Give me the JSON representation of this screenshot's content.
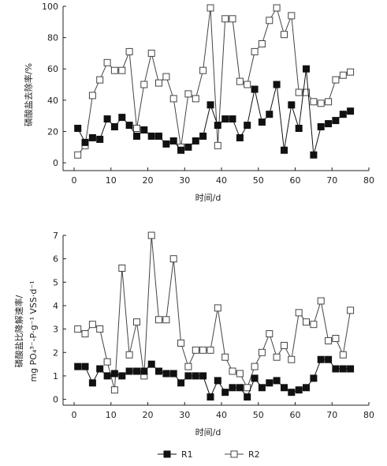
{
  "colors": {
    "r1": "#111111",
    "r2": "#444444",
    "axis": "#222222"
  },
  "legend": {
    "items": [
      {
        "name": "R1",
        "marker": "filled-square"
      },
      {
        "name": "R2",
        "marker": "open-square"
      }
    ]
  },
  "chart_data": [
    {
      "type": "line",
      "title": "",
      "xlabel": "时间/d",
      "ylabel": "磷酸盐去除率/%",
      "xlim": [
        -3,
        80
      ],
      "ylim": [
        -5,
        100
      ],
      "xticks": [
        0,
        10,
        20,
        30,
        40,
        50,
        60,
        70,
        80
      ],
      "yticks": [
        0,
        20,
        40,
        60,
        80,
        100
      ],
      "grid": false,
      "series": [
        {
          "name": "R1",
          "marker": "filled-square",
          "x": [
            1,
            3,
            5,
            7,
            9,
            11,
            13,
            15,
            17,
            19,
            21,
            23,
            25,
            27,
            29,
            31,
            33,
            35,
            37,
            39,
            41,
            43,
            45,
            47,
            49,
            51,
            53,
            55,
            57,
            59,
            61,
            63,
            65,
            67,
            69,
            71,
            73,
            75
          ],
          "values": [
            22,
            13,
            16,
            15,
            28,
            23,
            29,
            24,
            17,
            21,
            17,
            17,
            12,
            14,
            8,
            10,
            14,
            17,
            37,
            24,
            28,
            28,
            16,
            24,
            47,
            26,
            31,
            50,
            8,
            37,
            22,
            60,
            5,
            23,
            25,
            27,
            31,
            33
          ]
        },
        {
          "name": "R2",
          "marker": "open-square",
          "x": [
            1,
            3,
            5,
            7,
            9,
            11,
            13,
            15,
            17,
            19,
            21,
            23,
            25,
            27,
            29,
            31,
            33,
            35,
            37,
            39,
            41,
            43,
            45,
            47,
            49,
            51,
            53,
            55,
            57,
            59,
            61,
            63,
            65,
            67,
            69,
            71,
            73,
            75
          ],
          "values": [
            5,
            11,
            43,
            53,
            64,
            59,
            59,
            71,
            22,
            50,
            70,
            51,
            55,
            41,
            10,
            44,
            41,
            59,
            99,
            11,
            92,
            92,
            52,
            50,
            71,
            76,
            91,
            99,
            82,
            94,
            45,
            45,
            39,
            38,
            39,
            53,
            56,
            58
          ]
        }
      ]
    },
    {
      "type": "line",
      "title": "",
      "xlabel": "时间/d",
      "ylabel_line1": "磷酸盐比降解速率/",
      "ylabel_line2": "mg PO₄³⁻-P·g⁻¹ VSS·d⁻¹",
      "xlim": [
        -3,
        80
      ],
      "ylim": [
        -0.25,
        7
      ],
      "xticks": [
        0,
        10,
        20,
        30,
        40,
        50,
        60,
        70,
        80
      ],
      "yticks": [
        0,
        1,
        2,
        3,
        4,
        5,
        6,
        7
      ],
      "grid": false,
      "series": [
        {
          "name": "R1",
          "marker": "filled-square",
          "x": [
            1,
            3,
            5,
            7,
            9,
            11,
            13,
            15,
            17,
            19,
            21,
            23,
            25,
            27,
            29,
            31,
            33,
            35,
            37,
            39,
            41,
            43,
            45,
            47,
            49,
            51,
            53,
            55,
            57,
            59,
            61,
            63,
            65,
            67,
            69,
            71,
            73,
            75
          ],
          "values": [
            1.4,
            1.4,
            0.7,
            1.3,
            1.0,
            1.1,
            1.0,
            1.2,
            1.2,
            1.2,
            1.5,
            1.2,
            1.1,
            1.1,
            0.7,
            1.0,
            1.0,
            1.0,
            0.1,
            0.8,
            0.3,
            0.5,
            0.5,
            0.1,
            0.9,
            0.5,
            0.7,
            0.8,
            0.5,
            0.3,
            0.4,
            0.5,
            0.9,
            1.7,
            1.7,
            1.3,
            1.3,
            1.3
          ]
        },
        {
          "name": "R2",
          "marker": "open-square",
          "x": [
            1,
            3,
            5,
            7,
            9,
            11,
            13,
            15,
            17,
            19,
            21,
            23,
            25,
            27,
            29,
            31,
            33,
            35,
            37,
            39,
            41,
            43,
            45,
            47,
            49,
            51,
            53,
            55,
            57,
            59,
            61,
            63,
            65,
            67,
            69,
            71,
            73,
            75
          ],
          "values": [
            3.0,
            2.8,
            3.2,
            3.0,
            1.6,
            0.4,
            5.6,
            1.9,
            3.3,
            1.0,
            7.0,
            3.4,
            3.4,
            6.0,
            2.4,
            1.4,
            2.1,
            2.1,
            2.1,
            3.9,
            1.8,
            1.2,
            1.1,
            0.5,
            1.4,
            2.0,
            2.8,
            1.8,
            2.3,
            1.7,
            3.7,
            3.3,
            3.2,
            4.2,
            2.5,
            2.6,
            1.9,
            3.8
          ]
        }
      ]
    }
  ]
}
